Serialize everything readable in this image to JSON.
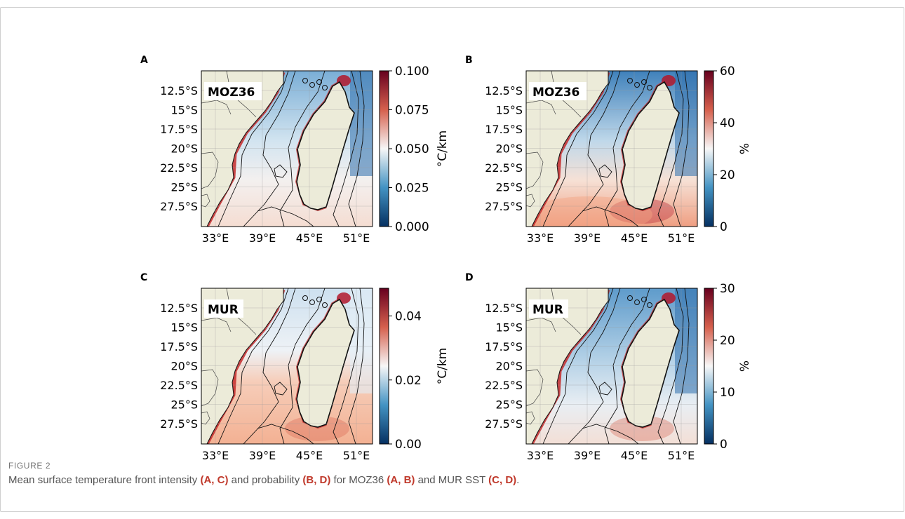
{
  "figure": {
    "label": "FIGURE 2",
    "caption_parts": [
      {
        "text": "Mean surface temperature front intensity ",
        "bold": false
      },
      {
        "text": "(A, C)",
        "bold": true
      },
      {
        "text": " and probability ",
        "bold": false
      },
      {
        "text": "(B, D)",
        "bold": true
      },
      {
        "text": " for MOZ36 ",
        "bold": false
      },
      {
        "text": "(A, B)",
        "bold": true
      },
      {
        "text": " and MUR SST ",
        "bold": false
      },
      {
        "text": "(C, D)",
        "bold": true
      },
      {
        "text": ".",
        "bold": false
      }
    ]
  },
  "colors": {
    "land": "#ecebd9",
    "deep_blue": "#053061",
    "light": "#f7f7f7",
    "deep_red": "#67001f",
    "caption_bold": "#c0392b"
  },
  "lat_ticks": [
    "12.5°S",
    "15°S",
    "17.5°S",
    "20°S",
    "22.5°S",
    "25°S",
    "27.5°S"
  ],
  "lon_ticks": [
    "33°E",
    "39°E",
    "45°E",
    "51°E"
  ],
  "panels": [
    {
      "letter": "A",
      "tag": "MOZ36",
      "metric": "intensity",
      "colorbar": {
        "ticks": [
          "0.100",
          "0.075",
          "0.050",
          "0.025",
          "0.000"
        ],
        "label": "°C/km"
      }
    },
    {
      "letter": "B",
      "tag": "MOZ36",
      "metric": "probability",
      "colorbar": {
        "ticks": [
          "60",
          "40",
          "20",
          "0"
        ],
        "label": "%"
      }
    },
    {
      "letter": "C",
      "tag": "MUR",
      "metric": "intensity",
      "colorbar": {
        "ticks": [
          "0.04",
          "0.02",
          "0.00"
        ],
        "label": "°C/km"
      }
    },
    {
      "letter": "D",
      "tag": "MUR",
      "metric": "probability",
      "colorbar": {
        "ticks": [
          "30",
          "20",
          "10",
          "0"
        ],
        "label": "%"
      }
    }
  ]
}
